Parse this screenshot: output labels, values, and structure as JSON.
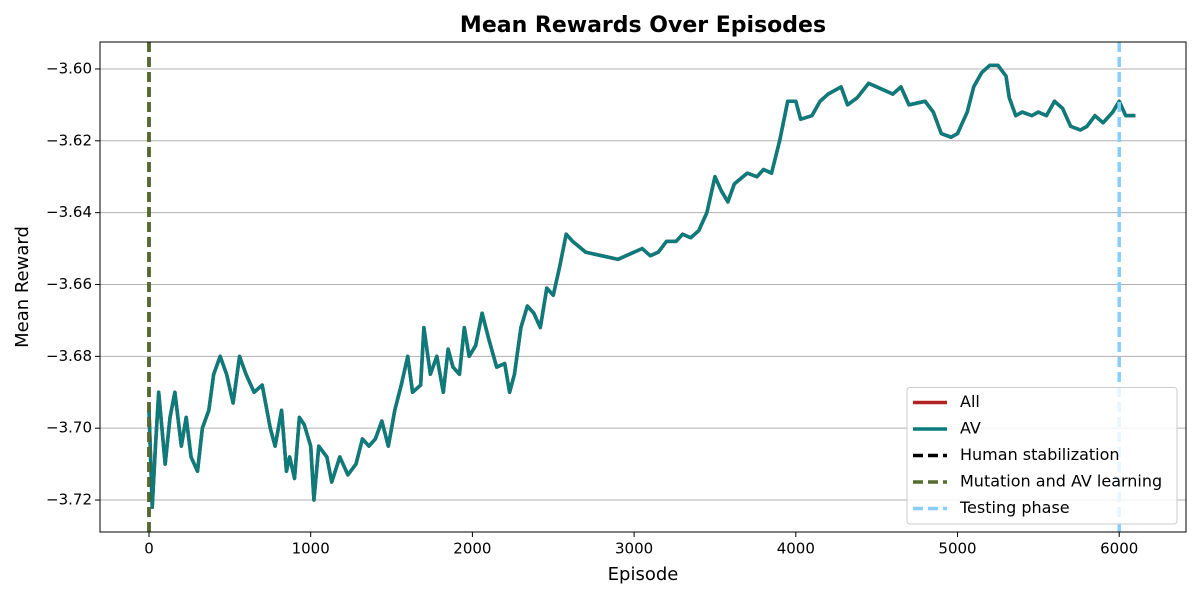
{
  "chart_data": {
    "type": "line",
    "title": "Mean Rewards Over Episodes",
    "x_label": "Episode",
    "y_label": "Mean Reward",
    "xlim": [
      -303,
      6413
    ],
    "ylim": [
      -3.7289,
      -3.5925
    ],
    "xticks": [
      0,
      1000,
      2000,
      3000,
      4000,
      5000,
      6000
    ],
    "yticks": [
      {
        "value": -3.6,
        "label": "−3.60"
      },
      {
        "value": -3.62,
        "label": "−3.62"
      },
      {
        "value": -3.64,
        "label": "−3.64"
      },
      {
        "value": -3.66,
        "label": "−3.66"
      },
      {
        "value": -3.68,
        "label": "−3.68"
      },
      {
        "value": -3.7,
        "label": "−3.70"
      },
      {
        "value": -3.72,
        "label": "−3.72"
      }
    ],
    "grid": "y",
    "legend_position": "lower right",
    "x": [
      0,
      20,
      40,
      60,
      80,
      100,
      130,
      160,
      200,
      230,
      260,
      300,
      330,
      370,
      400,
      440,
      480,
      520,
      560,
      600,
      650,
      700,
      750,
      780,
      820,
      850,
      870,
      900,
      930,
      960,
      1000,
      1020,
      1050,
      1100,
      1130,
      1180,
      1230,
      1280,
      1320,
      1360,
      1400,
      1440,
      1480,
      1520,
      1560,
      1600,
      1630,
      1680,
      1700,
      1740,
      1780,
      1820,
      1850,
      1880,
      1920,
      1950,
      1980,
      2020,
      2060,
      2100,
      2150,
      2200,
      2230,
      2260,
      2300,
      2340,
      2380,
      2420,
      2460,
      2500,
      2540,
      2580,
      2620,
      2700,
      2800,
      2900,
      3000,
      3050,
      3100,
      3150,
      3200,
      3260,
      3300,
      3350,
      3400,
      3450,
      3500,
      3540,
      3580,
      3620,
      3700,
      3760,
      3800,
      3850,
      3900,
      3950,
      4000,
      4030,
      4100,
      4150,
      4200,
      4280,
      4320,
      4380,
      4450,
      4500,
      4550,
      4600,
      4650,
      4700,
      4800,
      4850,
      4900,
      4960,
      5000,
      5060,
      5100,
      5150,
      5200,
      5250,
      5300,
      5320,
      5360,
      5400,
      5460,
      5500,
      5550,
      5600,
      5650,
      5700,
      5760,
      5800,
      5850,
      5900,
      5960,
      6000,
      6040,
      6100
    ],
    "series": [
      {
        "name": "All",
        "color": "#b22222",
        "values": [
          -3.695,
          -3.722,
          -3.705,
          -3.69,
          -3.7,
          -3.71,
          -3.697,
          -3.69,
          -3.705,
          -3.697,
          -3.708,
          -3.712,
          -3.7,
          -3.695,
          -3.685,
          -3.68,
          -3.685,
          -3.693,
          -3.68,
          -3.685,
          -3.69,
          -3.688,
          -3.7,
          -3.705,
          -3.695,
          -3.712,
          -3.708,
          -3.714,
          -3.697,
          -3.699,
          -3.705,
          -3.72,
          -3.705,
          -3.708,
          -3.715,
          -3.708,
          -3.713,
          -3.71,
          -3.703,
          -3.705,
          -3.703,
          -3.698,
          -3.705,
          -3.695,
          -3.688,
          -3.68,
          -3.69,
          -3.688,
          -3.672,
          -3.685,
          -3.68,
          -3.69,
          -3.678,
          -3.683,
          -3.685,
          -3.672,
          -3.68,
          -3.677,
          -3.668,
          -3.675,
          -3.683,
          -3.682,
          -3.69,
          -3.685,
          -3.672,
          -3.666,
          -3.668,
          -3.672,
          -3.661,
          -3.663,
          -3.655,
          -3.646,
          -3.648,
          -3.651,
          -3.652,
          -3.653,
          -3.651,
          -3.65,
          -3.652,
          -3.651,
          -3.648,
          -3.648,
          -3.646,
          -3.647,
          -3.645,
          -3.64,
          -3.63,
          -3.634,
          -3.637,
          -3.632,
          -3.629,
          -3.63,
          -3.628,
          -3.629,
          -3.62,
          -3.609,
          -3.609,
          -3.614,
          -3.613,
          -3.609,
          -3.607,
          -3.605,
          -3.61,
          -3.608,
          -3.604,
          -3.605,
          -3.606,
          -3.607,
          -3.605,
          -3.61,
          -3.609,
          -3.612,
          -3.618,
          -3.619,
          -3.618,
          -3.612,
          -3.605,
          -3.601,
          -3.599,
          -3.599,
          -3.602,
          -3.608,
          -3.613,
          -3.612,
          -3.613,
          -3.612,
          -3.613,
          -3.609,
          -3.611,
          -3.616,
          -3.617,
          -3.616,
          -3.613,
          -3.615,
          -3.612,
          -3.609,
          -3.613,
          -3.613
        ]
      },
      {
        "name": "AV",
        "color": "#0b7b7b",
        "values": [
          -3.695,
          -3.722,
          -3.705,
          -3.69,
          -3.7,
          -3.71,
          -3.697,
          -3.69,
          -3.705,
          -3.697,
          -3.708,
          -3.712,
          -3.7,
          -3.695,
          -3.685,
          -3.68,
          -3.685,
          -3.693,
          -3.68,
          -3.685,
          -3.69,
          -3.688,
          -3.7,
          -3.705,
          -3.695,
          -3.712,
          -3.708,
          -3.714,
          -3.697,
          -3.699,
          -3.705,
          -3.72,
          -3.705,
          -3.708,
          -3.715,
          -3.708,
          -3.713,
          -3.71,
          -3.703,
          -3.705,
          -3.703,
          -3.698,
          -3.705,
          -3.695,
          -3.688,
          -3.68,
          -3.69,
          -3.688,
          -3.672,
          -3.685,
          -3.68,
          -3.69,
          -3.678,
          -3.683,
          -3.685,
          -3.672,
          -3.68,
          -3.677,
          -3.668,
          -3.675,
          -3.683,
          -3.682,
          -3.69,
          -3.685,
          -3.672,
          -3.666,
          -3.668,
          -3.672,
          -3.661,
          -3.663,
          -3.655,
          -3.646,
          -3.648,
          -3.651,
          -3.652,
          -3.653,
          -3.651,
          -3.65,
          -3.652,
          -3.651,
          -3.648,
          -3.648,
          -3.646,
          -3.647,
          -3.645,
          -3.64,
          -3.63,
          -3.634,
          -3.637,
          -3.632,
          -3.629,
          -3.63,
          -3.628,
          -3.629,
          -3.62,
          -3.609,
          -3.609,
          -3.614,
          -3.613,
          -3.609,
          -3.607,
          -3.605,
          -3.61,
          -3.608,
          -3.604,
          -3.605,
          -3.606,
          -3.607,
          -3.605,
          -3.61,
          -3.609,
          -3.612,
          -3.618,
          -3.619,
          -3.618,
          -3.612,
          -3.605,
          -3.601,
          -3.599,
          -3.599,
          -3.602,
          -3.608,
          -3.613,
          -3.612,
          -3.613,
          -3.612,
          -3.613,
          -3.609,
          -3.611,
          -3.616,
          -3.617,
          -3.616,
          -3.613,
          -3.615,
          -3.612,
          -3.609,
          -3.613,
          -3.613
        ]
      }
    ],
    "vlines": [
      {
        "name": "Human stabilization",
        "color": "#000000",
        "x": 0,
        "dashed": true
      },
      {
        "name": "Mutation and AV learning",
        "color": "#556b2f",
        "x": 0,
        "dashed": true
      },
      {
        "name": "Testing phase",
        "color": "#87cefa",
        "x": 6000,
        "dashed": true
      }
    ]
  }
}
